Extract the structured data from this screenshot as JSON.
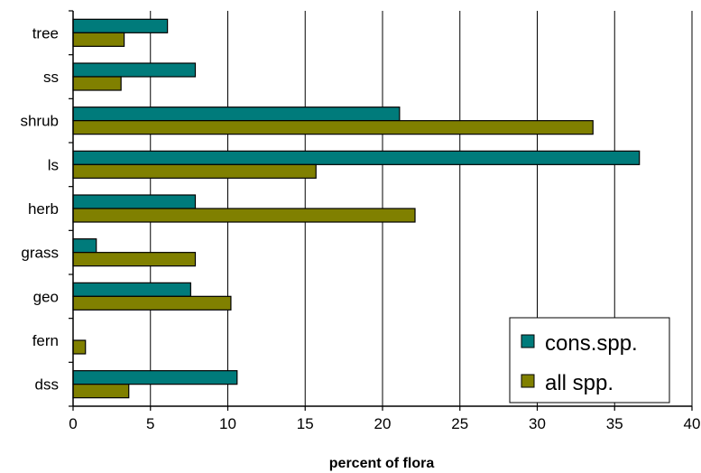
{
  "chart_data": {
    "type": "bar",
    "orientation": "horizontal",
    "categories": [
      "tree",
      "ss",
      "shrub",
      "ls",
      "herb",
      "grass",
      "geo",
      "fern",
      "dss"
    ],
    "series": [
      {
        "name": "cons.spp.",
        "values": [
          6.1,
          7.9,
          21.1,
          36.6,
          7.9,
          1.5,
          7.6,
          0,
          10.6
        ],
        "color": "#007b7b"
      },
      {
        "name": "all spp.",
        "values": [
          3.3,
          3.1,
          33.6,
          15.7,
          22.1,
          7.9,
          10.2,
          0.8,
          3.6
        ],
        "color": "#808000"
      }
    ],
    "xlabel": "percent of flora",
    "ylabel": "",
    "xlim": [
      0,
      40
    ],
    "xticks": [
      0,
      5,
      10,
      15,
      20,
      25,
      30,
      35,
      40
    ],
    "grid": "vertical",
    "legend_position": "bottom-right"
  }
}
